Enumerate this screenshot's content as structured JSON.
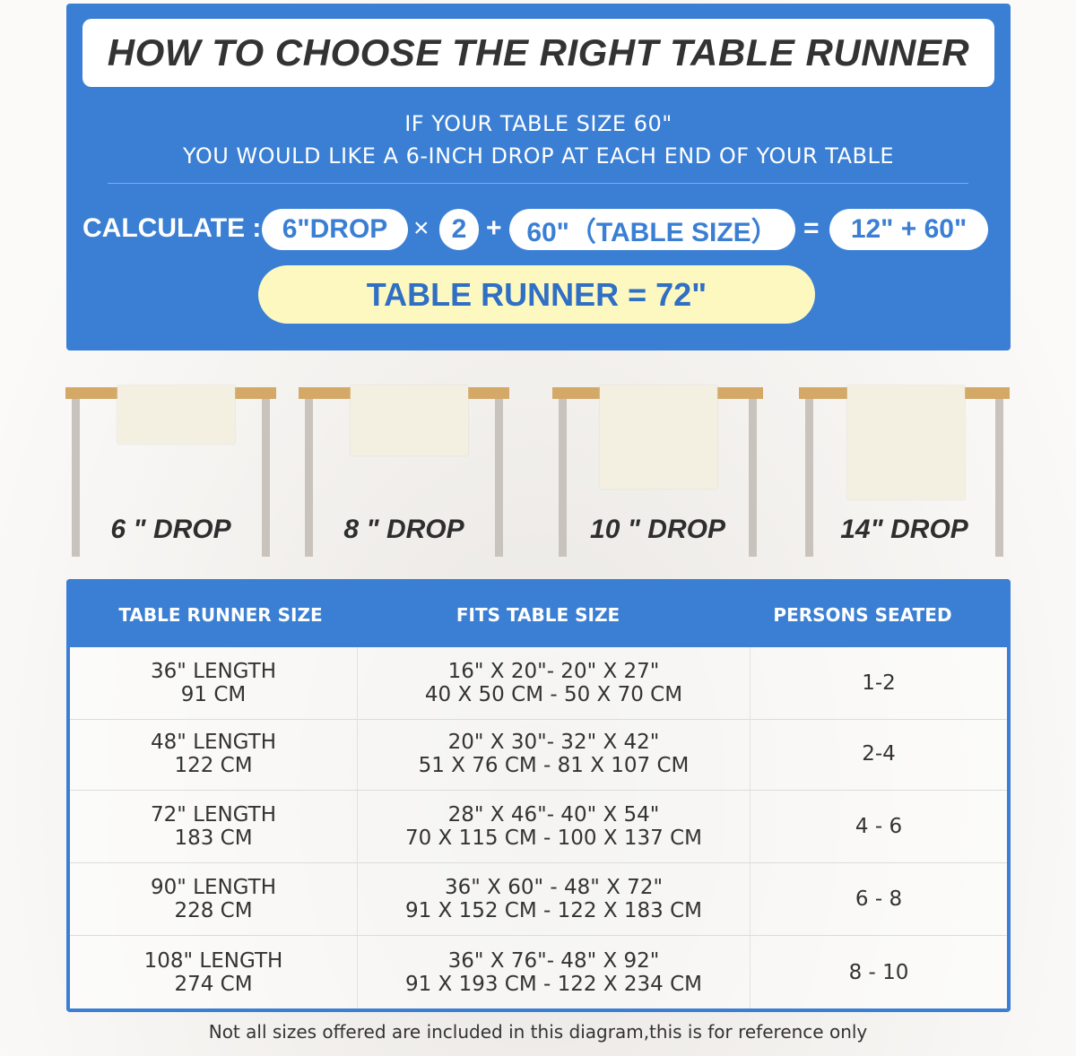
{
  "header": {
    "title": "HOW TO CHOOSE THE RIGHT TABLE RUNNER",
    "line1": "IF YOUR TABLE SIZE 60\"",
    "line2": "YOU WOULD LIKE A 6-INCH DROP AT EACH END OF YOUR TABLE"
  },
  "calculation": {
    "label": "CALCULATE :",
    "drop": "6\"DROP",
    "times": "×",
    "multiplier": "2",
    "plus": "+",
    "table_size": "60\"（TABLE SIZE）",
    "equals": "=",
    "sum": "12\" + 60\"",
    "result": "TABLE RUNNER = 72\""
  },
  "colors": {
    "primary": "#3a7fd4",
    "result_bg": "#fdf8c0",
    "table_top": "#d4a867",
    "runner": "#f3f0e2"
  },
  "drops": [
    {
      "label": "6 \" DROP",
      "inches": 6
    },
    {
      "label": "8 \" DROP",
      "inches": 8
    },
    {
      "label": "10 \" DROP",
      "inches": 10
    },
    {
      "label": "14\" DROP",
      "inches": 14
    }
  ],
  "table": {
    "headers": [
      "TABLE RUNNER SIZE",
      "FITS TABLE SIZE",
      "PERSONS SEATED"
    ],
    "rows": [
      {
        "size": [
          "36\" LENGTH",
          "91 CM"
        ],
        "fits": [
          "16\" X 20\"- 20\" X 27\"",
          "40 X 50 CM - 50 X 70 CM"
        ],
        "persons": "1-2"
      },
      {
        "size": [
          "48\" LENGTH",
          "122 CM"
        ],
        "fits": [
          "20\" X 30\"- 32\" X 42\"",
          "51 X 76 CM - 81 X 107 CM"
        ],
        "persons": "2-4"
      },
      {
        "size": [
          "72\" LENGTH",
          "183 CM"
        ],
        "fits": [
          "28\" X 46\"- 40\" X 54\"",
          "70 X 115 CM - 100 X 137 CM"
        ],
        "persons": "4 - 6"
      },
      {
        "size": [
          "90\" LENGTH",
          "228 CM"
        ],
        "fits": [
          "36\" X 60\" - 48\" X 72\"",
          "91 X 152 CM - 122 X 183 CM"
        ],
        "persons": "6 - 8"
      },
      {
        "size": [
          "108\" LENGTH",
          "274 CM"
        ],
        "fits": [
          "36\" X 76\"- 48\" X 92\"",
          "91 X 193 CM - 122 X 234 CM"
        ],
        "persons": "8 - 10"
      }
    ]
  },
  "note": "Not all sizes offered are included in this diagram,this is for reference only"
}
